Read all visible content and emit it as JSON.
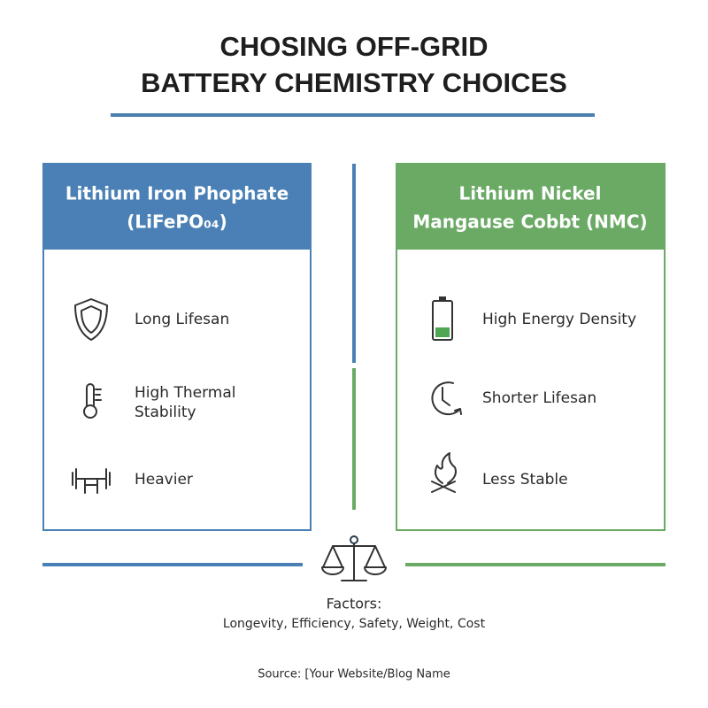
{
  "title": {
    "lines": [
      "CHOSING OFF-GRID",
      "BATTERY CHEMISTRY CHOICES"
    ]
  },
  "panels": [
    {
      "title_lines": [
        "Lithium Iron Phophate",
        "(LiFePO₀₄)"
      ],
      "items": [
        {
          "lines": [
            "Long Lifesan"
          ]
        },
        {
          "lines": [
            "High Thermal",
            "Stability"
          ]
        },
        {
          "lines": [
            "Heavier"
          ]
        }
      ]
    },
    {
      "title_lines": [
        "Lithium Nickel",
        "Mangause Cobbt (NMC)"
      ],
      "items": [
        {
          "lines": [
            "High Energy Density"
          ]
        },
        {
          "lines": [
            "Shorter Lifesan"
          ]
        },
        {
          "lines": [
            "Less Stable"
          ]
        }
      ]
    }
  ],
  "factors": {
    "label": "Factors:",
    "text": "Longevity, Efficiency, Safety, Weight, Cost"
  },
  "source": "Source: [Your Website/Blog Name"
}
